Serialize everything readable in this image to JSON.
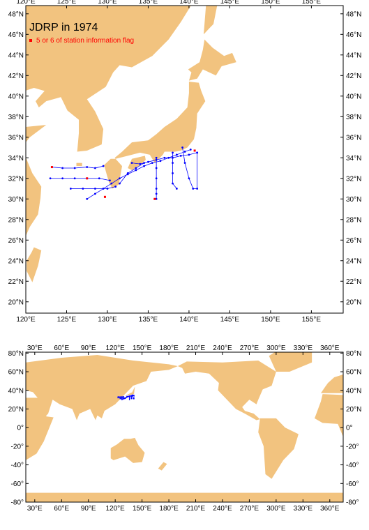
{
  "title": "JDRP in 1974",
  "legend": {
    "label": "5 or 6 of station information flag",
    "color": "#ff0000"
  },
  "land_color": "#f2c37f",
  "track_color": "#0000ff",
  "maps": [
    {
      "xlim": [
        120,
        158.9
      ],
      "ylim": [
        18.9,
        48.8
      ],
      "xticks": [
        {
          "value": 120,
          "label": "120°E"
        },
        {
          "value": 125,
          "label": "125°E"
        },
        {
          "value": 130,
          "label": "130°E"
        },
        {
          "value": 135,
          "label": "135°E"
        },
        {
          "value": 140,
          "label": "140°E"
        },
        {
          "value": 145,
          "label": "145°E"
        },
        {
          "value": 150,
          "label": "150°E"
        },
        {
          "value": 155,
          "label": "155°E"
        }
      ],
      "yticks": [
        {
          "value": 20,
          "label": "20°N"
        },
        {
          "value": 22,
          "label": "22°N"
        },
        {
          "value": 24,
          "label": "24°N"
        },
        {
          "value": 26,
          "label": "26°N"
        },
        {
          "value": 28,
          "label": "28°N"
        },
        {
          "value": 30,
          "label": "30°N"
        },
        {
          "value": 32,
          "label": "32°N"
        },
        {
          "value": 34,
          "label": "34°N"
        },
        {
          "value": 36,
          "label": "36°N"
        },
        {
          "value": 38,
          "label": "38°N"
        },
        {
          "value": 40,
          "label": "40°N"
        },
        {
          "value": 42,
          "label": "42°N"
        },
        {
          "value": 44,
          "label": "44°N"
        },
        {
          "value": 46,
          "label": "46°N"
        },
        {
          "value": 48,
          "label": "48°N"
        }
      ]
    },
    {
      "xlim": [
        20,
        375
      ],
      "ylim": [
        -80,
        81
      ],
      "xticks": [
        {
          "value": 30,
          "label": "30°E"
        },
        {
          "value": 60,
          "label": "60°E"
        },
        {
          "value": 90,
          "label": "90°E"
        },
        {
          "value": 120,
          "label": "120°E"
        },
        {
          "value": 150,
          "label": "150°E"
        },
        {
          "value": 180,
          "label": "180°E"
        },
        {
          "value": 210,
          "label": "210°E"
        },
        {
          "value": 240,
          "label": "240°E"
        },
        {
          "value": 270,
          "label": "270°E"
        },
        {
          "value": 300,
          "label": "300°E"
        },
        {
          "value": 330,
          "label": "330°E"
        },
        {
          "value": 360,
          "label": "360°E"
        }
      ],
      "yticks": [
        {
          "value": 80,
          "label": "80°N"
        },
        {
          "value": 60,
          "label": "60°N"
        },
        {
          "value": 40,
          "label": "40°N"
        },
        {
          "value": 20,
          "label": "20°N"
        },
        {
          "value": 0,
          "label": "0°"
        },
        {
          "value": -20,
          "label": "-20°"
        },
        {
          "value": -40,
          "label": "-40°"
        },
        {
          "value": -60,
          "label": "-60°"
        },
        {
          "value": -80,
          "label": "-80°"
        }
      ]
    }
  ],
  "tracks": [
    {
      "lon": [
        123.2,
        124.5,
        126,
        127.5,
        128.5,
        129.5
      ],
      "lat": [
        33.1,
        33,
        33,
        33.1,
        33,
        33.2
      ]
    },
    {
      "lon": [
        123,
        124.5,
        126,
        127.5,
        129,
        130.3
      ],
      "lat": [
        32,
        32,
        32,
        32,
        32,
        31.8
      ]
    },
    {
      "lon": [
        125.5,
        127,
        128.5,
        130,
        131
      ],
      "lat": [
        31,
        31,
        31,
        31,
        31.2
      ]
    },
    {
      "lon": [
        127.5,
        128.5,
        129.5,
        130.5,
        131.5,
        132.5,
        133.5,
        134.5,
        135.5,
        136.5,
        137.5,
        138.5,
        139.5,
        140.2
      ],
      "lat": [
        30,
        30.5,
        31,
        31.5,
        32,
        32.4,
        32.8,
        33.2,
        33.5,
        33.7,
        34,
        34.3,
        34.6,
        34.8
      ]
    },
    {
      "lon": [
        133,
        134,
        135,
        136,
        137,
        138,
        139,
        140,
        141
      ],
      "lat": [
        33.5,
        33.4,
        33.6,
        33.8,
        34,
        34,
        34.2,
        34.3,
        34.5
      ]
    },
    {
      "lon": [
        136,
        136,
        136,
        136,
        136,
        136
      ],
      "lat": [
        34,
        33,
        32,
        31,
        30.5,
        30
      ]
    },
    {
      "lon": [
        138,
        138,
        138,
        138,
        138.5
      ],
      "lat": [
        34.5,
        33.5,
        32.5,
        31.5,
        31
      ]
    },
    {
      "lon": [
        139.2,
        139.5,
        140,
        140.5,
        141,
        141
      ],
      "lat": [
        35,
        33.5,
        32,
        31,
        31,
        34.5
      ]
    },
    {
      "lon": [
        131.5,
        132.5,
        133.5,
        134.5
      ],
      "lat": [
        31.5,
        32.5,
        33,
        33.5
      ]
    }
  ],
  "flagged": {
    "lon": [
      123.2,
      127.5,
      135.8,
      140.7,
      129.7
    ],
    "lat": [
      33.1,
      32,
      30,
      34.7,
      30.2
    ]
  }
}
